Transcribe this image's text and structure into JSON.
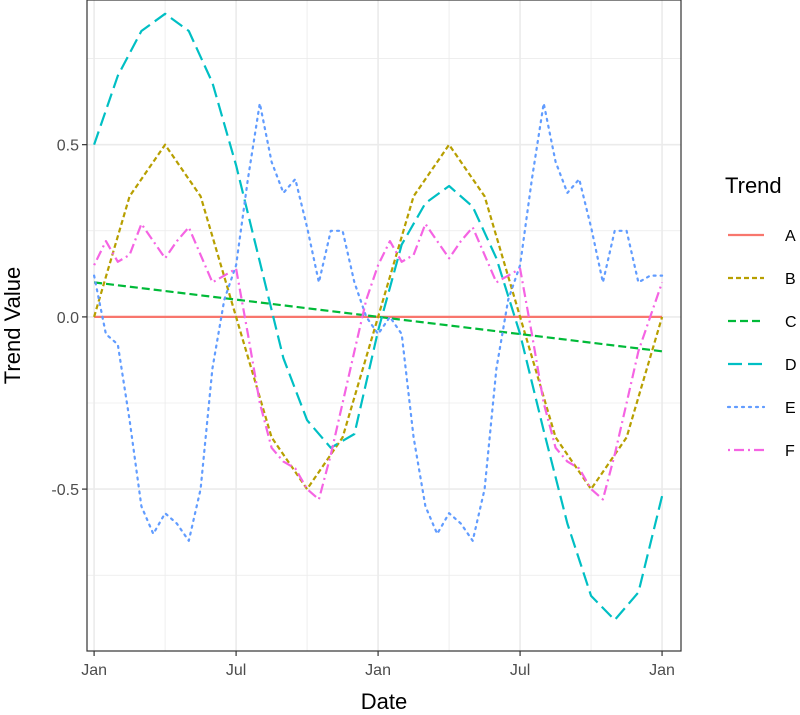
{
  "chart_data": {
    "type": "line",
    "title": "",
    "xlabel": "Date",
    "ylabel": "Trend Value",
    "x_tick_labels": [
      "Jan",
      "Jul",
      "Jan",
      "Jul",
      "Jan"
    ],
    "x_tick_positions_months": [
      0,
      6,
      12,
      18,
      24
    ],
    "xlim_months": [
      -0.3,
      24.8
    ],
    "y_tick_labels": [
      "-0.5",
      "0.0",
      "0.5"
    ],
    "y_tick_values": [
      -0.5,
      0.0,
      0.5
    ],
    "ylim": [
      -0.97,
      0.92
    ],
    "grid": true,
    "legend": {
      "title": "Trend",
      "placement": "right"
    },
    "series": [
      {
        "name": "A",
        "color": "#F8766D",
        "linetype": "solid",
        "x": [
          0,
          24
        ],
        "y": [
          0,
          0
        ]
      },
      {
        "name": "B",
        "color": "#B79F00",
        "linetype": "dotted-dash",
        "x": [
          0,
          1.5,
          3,
          4.5,
          6,
          7.5,
          9,
          10.5,
          12,
          13.5,
          15,
          16.5,
          18,
          19.5,
          21,
          22.5,
          24
        ],
        "y": [
          0,
          0.35,
          0.5,
          0.35,
          0,
          -0.35,
          -0.5,
          -0.35,
          0,
          0.35,
          0.5,
          0.35,
          0,
          -0.35,
          -0.5,
          -0.35,
          0
        ]
      },
      {
        "name": "C",
        "color": "#00BA38",
        "linetype": "dashed",
        "x": [
          0,
          24
        ],
        "y": [
          0.1,
          -0.1
        ]
      },
      {
        "name": "D",
        "color": "#00BFC4",
        "linetype": "longdash",
        "x": [
          0,
          1,
          2,
          3,
          4,
          5,
          6,
          7,
          8,
          9,
          10,
          11,
          12,
          13,
          14,
          15,
          16,
          17,
          18,
          19,
          20,
          21,
          22,
          23,
          24
        ],
        "y": [
          0.5,
          0.7,
          0.83,
          0.88,
          0.83,
          0.68,
          0.44,
          0.16,
          -0.12,
          -0.3,
          -0.38,
          -0.34,
          -0.04,
          0.21,
          0.33,
          0.38,
          0.32,
          0.17,
          -0.05,
          -0.33,
          -0.6,
          -0.81,
          -0.88,
          -0.8,
          -0.52
        ]
      },
      {
        "name": "E",
        "color": "#619CFF",
        "linetype": "dotted",
        "x": [
          0,
          0.5,
          1,
          1.5,
          2,
          2.5,
          3,
          3.5,
          4,
          4.5,
          5,
          5.5,
          6,
          6.5,
          7,
          7.5,
          8,
          8.5,
          9,
          9.5,
          10,
          10.5,
          11,
          11.5,
          12,
          12.5,
          13,
          13.5,
          14,
          14.5,
          15,
          15.5,
          16,
          16.5,
          17,
          17.5,
          18,
          18.5,
          19,
          19.5,
          20,
          20.5,
          21,
          21.5,
          22,
          22.5,
          23,
          23.5,
          24
        ],
        "y": [
          0.12,
          -0.05,
          -0.08,
          -0.3,
          -0.55,
          -0.63,
          -0.57,
          -0.6,
          -0.65,
          -0.5,
          -0.15,
          0.05,
          0.15,
          0.4,
          0.62,
          0.45,
          0.36,
          0.4,
          0.26,
          0.1,
          0.25,
          0.25,
          0.1,
          0.0,
          -0.05,
          0.0,
          -0.05,
          -0.35,
          -0.55,
          -0.63,
          -0.57,
          -0.6,
          -0.65,
          -0.5,
          -0.15,
          0.05,
          0.15,
          0.4,
          0.62,
          0.45,
          0.36,
          0.4,
          0.26,
          0.1,
          0.25,
          0.25,
          0.1,
          0.12,
          0.12
        ]
      },
      {
        "name": "F",
        "color": "#F564E3",
        "linetype": "dotdash",
        "x": [
          0,
          0.5,
          1,
          1.5,
          2,
          2.5,
          3,
          3.5,
          4,
          4.5,
          5,
          5.5,
          6,
          6.5,
          7,
          7.5,
          8,
          8.5,
          9,
          9.5,
          10,
          10.5,
          11,
          11.5,
          12,
          12.5,
          13,
          13.5,
          14,
          14.5,
          15,
          15.5,
          16,
          16.5,
          17,
          17.5,
          18,
          18.5,
          19,
          19.5,
          20,
          20.5,
          21,
          21.5,
          22,
          22.5,
          23,
          23.5,
          24
        ],
        "y": [
          0.15,
          0.22,
          0.16,
          0.18,
          0.27,
          0.22,
          0.17,
          0.22,
          0.26,
          0.18,
          0.1,
          0.12,
          0.14,
          -0.05,
          -0.25,
          -0.38,
          -0.42,
          -0.44,
          -0.5,
          -0.53,
          -0.4,
          -0.25,
          -0.1,
          0.05,
          0.15,
          0.22,
          0.16,
          0.18,
          0.27,
          0.22,
          0.17,
          0.22,
          0.26,
          0.18,
          0.1,
          0.12,
          0.14,
          -0.05,
          -0.25,
          -0.38,
          -0.42,
          -0.44,
          -0.5,
          -0.53,
          -0.4,
          -0.25,
          -0.1,
          0.0,
          0.1
        ]
      }
    ]
  }
}
